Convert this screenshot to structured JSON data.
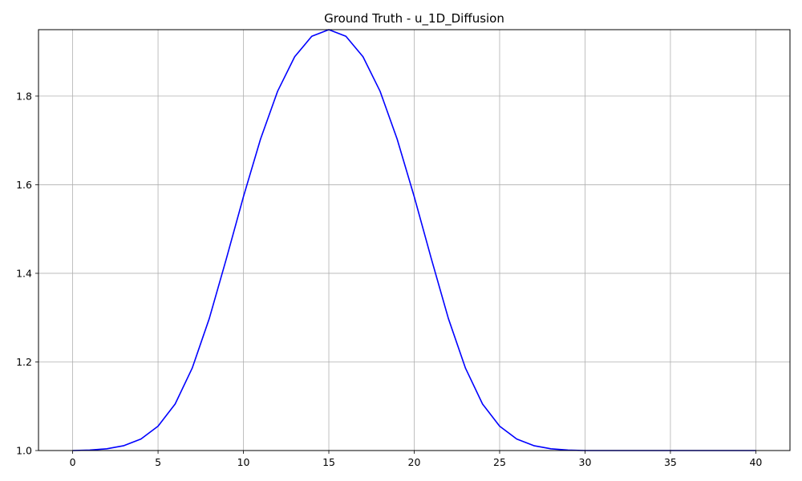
{
  "chart_data": {
    "type": "line",
    "title": "Ground Truth - u_1D_Diffusion",
    "xlabel": "",
    "ylabel": "",
    "xlim": [
      -2,
      42
    ],
    "ylim": [
      1.0,
      1.95
    ],
    "xticks": [
      0,
      5,
      10,
      15,
      20,
      25,
      30,
      35,
      40
    ],
    "xtick_labels": [
      "0",
      "5",
      "10",
      "15",
      "20",
      "25",
      "30",
      "35",
      "40"
    ],
    "yticks": [
      1.0,
      1.2,
      1.4,
      1.6,
      1.8
    ],
    "ytick_labels": [
      "1.0",
      "1.2",
      "1.4",
      "1.6",
      "1.8"
    ],
    "grid": true,
    "legend": "none",
    "series": [
      {
        "color": "#0000ff",
        "x": [
          0,
          1,
          2,
          3,
          4,
          5,
          6,
          7,
          8,
          9,
          10,
          11,
          12,
          13,
          14,
          15,
          16,
          17,
          18,
          19,
          20,
          21,
          22,
          23,
          24,
          25,
          26,
          27,
          28,
          29,
          30,
          31,
          32,
          33,
          34,
          35,
          36,
          37,
          38,
          39,
          40
        ],
        "y": [
          1.0,
          1.001,
          1.004,
          1.011,
          1.026,
          1.055,
          1.105,
          1.186,
          1.298,
          1.433,
          1.573,
          1.703,
          1.811,
          1.889,
          1.935,
          1.95,
          1.935,
          1.889,
          1.811,
          1.703,
          1.573,
          1.433,
          1.298,
          1.186,
          1.105,
          1.055,
          1.026,
          1.011,
          1.004,
          1.001,
          1.0,
          1.0,
          1.0,
          1.0,
          1.0,
          1.0,
          1.0,
          1.0,
          1.0,
          1.0,
          1.0
        ]
      }
    ]
  }
}
